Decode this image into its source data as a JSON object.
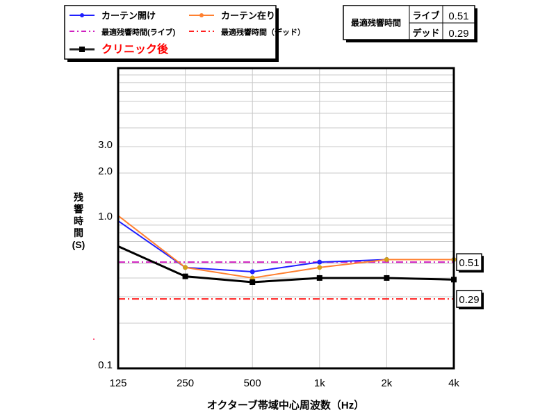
{
  "chart_data": {
    "type": "line",
    "title": "",
    "xlabel": "オクターブ帯域中心周波数（Hz）",
    "ylabel_lines": [
      "残",
      "響",
      "時",
      "間",
      "(S)"
    ],
    "y_scale": "log",
    "ylim": [
      0.1,
      10
    ],
    "grid": true,
    "categories": [
      "125",
      "250",
      "500",
      "1k",
      "2k",
      "4k"
    ],
    "y_tick_labels": [
      {
        "value": 0.1,
        "label": "0.1"
      },
      {
        "value": 1.0,
        "label": "1.0"
      },
      {
        "value": 2.0,
        "label": "2.0"
      },
      {
        "value": 3.0,
        "label": "3.0"
      }
    ],
    "series": [
      {
        "name": "カーテン開け",
        "color": "#1f1fff",
        "marker": "circle",
        "values": [
          0.96,
          0.47,
          0.44,
          0.51,
          0.53,
          0.53
        ]
      },
      {
        "name": "カーテン在り",
        "color": "#ff8030",
        "marker": "circle",
        "marker_color": "#d4a017",
        "values": [
          1.04,
          0.47,
          0.4,
          0.47,
          0.53,
          0.53
        ]
      },
      {
        "name": "クリニック後",
        "color": "#000000",
        "marker": "square",
        "values": [
          0.65,
          0.41,
          0.375,
          0.4,
          0.4,
          0.39
        ]
      }
    ],
    "reference_lines": [
      {
        "name": "最適残響時間(ライブ)",
        "value": 0.51,
        "label": "0.51",
        "color": "#d020c0"
      },
      {
        "name": "最適残響時間（デッド）",
        "value": 0.29,
        "label": "0.29",
        "color": "#ff2020"
      }
    ],
    "legend": "top-left",
    "legend_highlight_color": "#ff0000"
  },
  "optimum_table": {
    "title": "最適残響時間",
    "rows": [
      {
        "label": "ライブ",
        "value": "0.51"
      },
      {
        "label": "デッド",
        "value": "0.29"
      }
    ]
  }
}
